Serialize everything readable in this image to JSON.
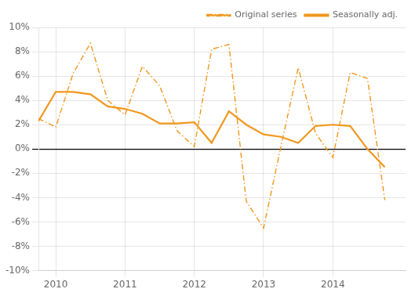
{
  "chart_data": {
    "type": "line",
    "x": [
      2009.75,
      2010.0,
      2010.25,
      2010.5,
      2010.75,
      2011.0,
      2011.25,
      2011.5,
      2011.75,
      2012.0,
      2012.25,
      2012.5,
      2012.75,
      2013.0,
      2013.25,
      2013.5,
      2013.75,
      2014.0,
      2014.25,
      2014.5,
      2014.75
    ],
    "series": [
      {
        "name": "Original series",
        "color": "#f0971e",
        "line_style": "dashdot",
        "values": [
          2.5,
          1.8,
          6.2,
          8.7,
          4.0,
          2.8,
          6.8,
          5.2,
          1.5,
          0.2,
          8.2,
          8.6,
          -4.3,
          -6.5,
          0.2,
          6.7,
          1.3,
          -0.7,
          6.3,
          5.8,
          -4.2
        ]
      },
      {
        "name": "Seasonally adj.",
        "color": "#f0971e",
        "line_style": "solid",
        "values": [
          2.3,
          4.7,
          4.7,
          4.5,
          3.5,
          3.3,
          2.9,
          2.1,
          2.1,
          2.2,
          0.5,
          3.1,
          2.0,
          1.2,
          1.0,
          0.5,
          1.9,
          2.0,
          1.9,
          0.0,
          -1.5
        ]
      }
    ],
    "xlim": [
      2009.75,
      2015.05
    ],
    "xticks": [
      2010,
      2011,
      2012,
      2013,
      2014
    ],
    "ylim": [
      -10,
      10
    ],
    "yticks": [
      {
        "value": -10,
        "label": "-10%"
      },
      {
        "value": -8,
        "label": "-8%"
      },
      {
        "value": -6,
        "label": "-6%"
      },
      {
        "value": -4,
        "label": "-4%"
      },
      {
        "value": -2,
        "label": "-2%"
      },
      {
        "value": 0,
        "label": "0%"
      },
      {
        "value": 2,
        "label": "2%"
      },
      {
        "value": 4,
        "label": "4%"
      },
      {
        "value": 6,
        "label": "6%"
      },
      {
        "value": 8,
        "label": "8%"
      },
      {
        "value": 10,
        "label": "10%"
      }
    ],
    "grid": true,
    "legend": "upper right"
  }
}
